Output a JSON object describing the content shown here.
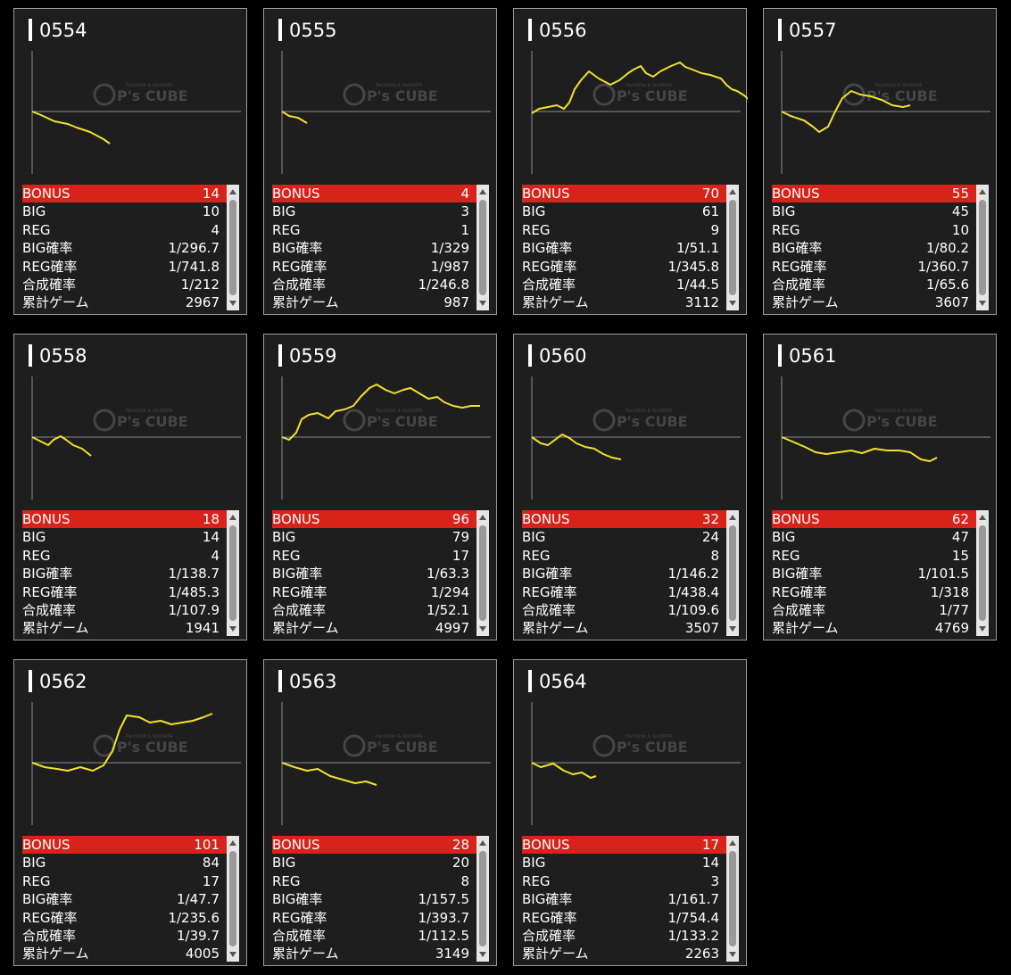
{
  "labels": {
    "bonus": "BONUS",
    "big": "BIG",
    "reg": "REG",
    "big_rate": "BIG確率",
    "reg_rate": "REG確率",
    "combined_rate": "合成確率",
    "total_games": "累計ゲーム"
  },
  "watermark": {
    "logo_text": "P's CUBE",
    "sub_text": "PachiSlot & SlotDATA"
  },
  "colors": {
    "bonus_row": "#d8231a",
    "graph_line": "#f2e12e",
    "background": "#000000",
    "card": "#1e1e1e"
  },
  "machines": [
    {
      "id": "0554",
      "bonus": "14",
      "big": "10",
      "reg": "4",
      "big_rate": "1/296.7",
      "reg_rate": "1/741.8",
      "combined_rate": "1/212",
      "total_games": "2967"
    },
    {
      "id": "0555",
      "bonus": "4",
      "big": "3",
      "reg": "1",
      "big_rate": "1/329",
      "reg_rate": "1/987",
      "combined_rate": "1/246.8",
      "total_games": "987"
    },
    {
      "id": "0556",
      "bonus": "70",
      "big": "61",
      "reg": "9",
      "big_rate": "1/51.1",
      "reg_rate": "1/345.8",
      "combined_rate": "1/44.5",
      "total_games": "3112"
    },
    {
      "id": "0557",
      "bonus": "55",
      "big": "45",
      "reg": "10",
      "big_rate": "1/80.2",
      "reg_rate": "1/360.7",
      "combined_rate": "1/65.6",
      "total_games": "3607"
    },
    {
      "id": "0558",
      "bonus": "18",
      "big": "14",
      "reg": "4",
      "big_rate": "1/138.7",
      "reg_rate": "1/485.3",
      "combined_rate": "1/107.9",
      "total_games": "1941"
    },
    {
      "id": "0559",
      "bonus": "96",
      "big": "79",
      "reg": "17",
      "big_rate": "1/63.3",
      "reg_rate": "1/294",
      "combined_rate": "1/52.1",
      "total_games": "4997"
    },
    {
      "id": "0560",
      "bonus": "32",
      "big": "24",
      "reg": "8",
      "big_rate": "1/146.2",
      "reg_rate": "1/438.4",
      "combined_rate": "1/109.6",
      "total_games": "3507"
    },
    {
      "id": "0561",
      "bonus": "62",
      "big": "47",
      "reg": "15",
      "big_rate": "1/101.5",
      "reg_rate": "1/318",
      "combined_rate": "1/77",
      "total_games": "4769"
    },
    {
      "id": "0562",
      "bonus": "101",
      "big": "84",
      "reg": "17",
      "big_rate": "1/47.7",
      "reg_rate": "1/235.6",
      "combined_rate": "1/39.7",
      "total_games": "4005"
    },
    {
      "id": "0563",
      "bonus": "28",
      "big": "20",
      "reg": "8",
      "big_rate": "1/157.5",
      "reg_rate": "1/393.7",
      "combined_rate": "1/112.5",
      "total_games": "3149"
    },
    {
      "id": "0564",
      "bonus": "17",
      "big": "14",
      "reg": "3",
      "big_rate": "1/161.7",
      "reg_rate": "1/754.4",
      "combined_rate": "1/133.2",
      "total_games": "2263"
    }
  ]
}
